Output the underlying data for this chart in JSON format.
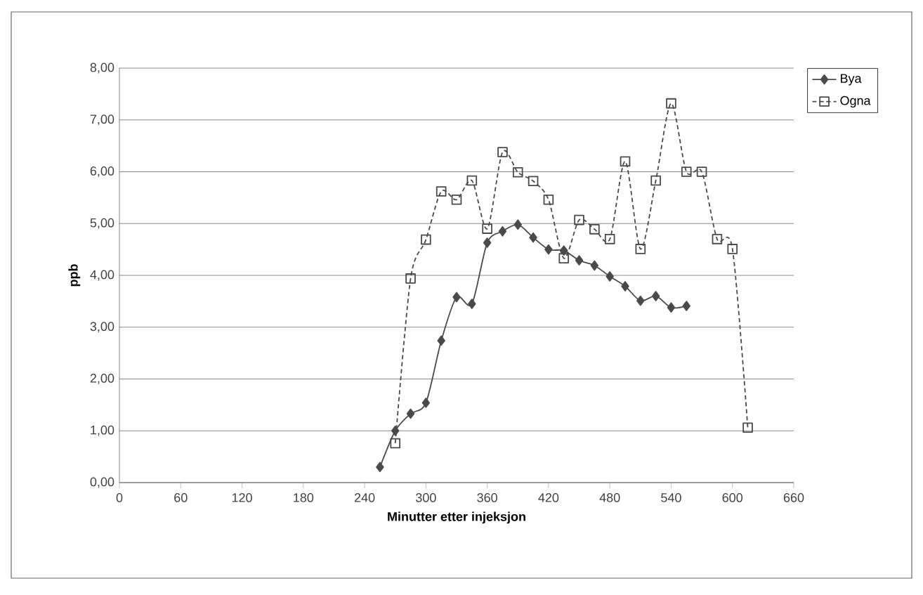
{
  "chart_data": {
    "type": "line",
    "xlabel": "Minutter etter injeksjon",
    "ylabel": "ppb",
    "xlim": [
      0,
      660
    ],
    "xticks": [
      0,
      60,
      120,
      180,
      240,
      300,
      360,
      420,
      480,
      540,
      600,
      660
    ],
    "ylim": [
      0,
      8
    ],
    "yticks": [
      {
        "value": 0,
        "label": "0,00"
      },
      {
        "value": 1,
        "label": "1,00"
      },
      {
        "value": 2,
        "label": "2,00"
      },
      {
        "value": 3,
        "label": "3,00"
      },
      {
        "value": 4,
        "label": "4,00"
      },
      {
        "value": 5,
        "label": "5,00"
      },
      {
        "value": 6,
        "label": "6,00"
      },
      {
        "value": 7,
        "label": "7,00"
      },
      {
        "value": 8,
        "label": "8,00"
      }
    ],
    "grid": "y",
    "legend": "top right",
    "series": [
      {
        "name": "Bya",
        "color": "#4a4a4a",
        "marker": "diamond",
        "line_style": "solid",
        "x": [
          255,
          270,
          285,
          300,
          315,
          330,
          345,
          360,
          375,
          390,
          405,
          420,
          435,
          450,
          465,
          480,
          495,
          510,
          525,
          540,
          555
        ],
        "values": [
          0.3,
          1.0,
          1.33,
          1.54,
          2.74,
          3.58,
          3.45,
          4.63,
          4.85,
          4.98,
          4.73,
          4.5,
          4.48,
          4.29,
          4.19,
          3.98,
          3.79,
          3.51,
          3.6,
          3.38,
          3.41
        ]
      },
      {
        "name": "Ogna",
        "color": "#4a4a4a",
        "marker": "square",
        "line_style": "dashed",
        "x": [
          270,
          285,
          300,
          315,
          330,
          345,
          360,
          375,
          390,
          405,
          420,
          435,
          450,
          465,
          480,
          495,
          510,
          525,
          540,
          555,
          570,
          585,
          600,
          615
        ],
        "values": [
          0.76,
          3.94,
          4.69,
          5.62,
          5.46,
          5.83,
          4.9,
          6.38,
          5.99,
          5.82,
          5.46,
          4.33,
          5.07,
          4.89,
          4.7,
          6.2,
          4.51,
          5.83,
          7.32,
          6.0,
          6.0,
          4.7,
          4.51,
          1.06
        ]
      }
    ]
  }
}
